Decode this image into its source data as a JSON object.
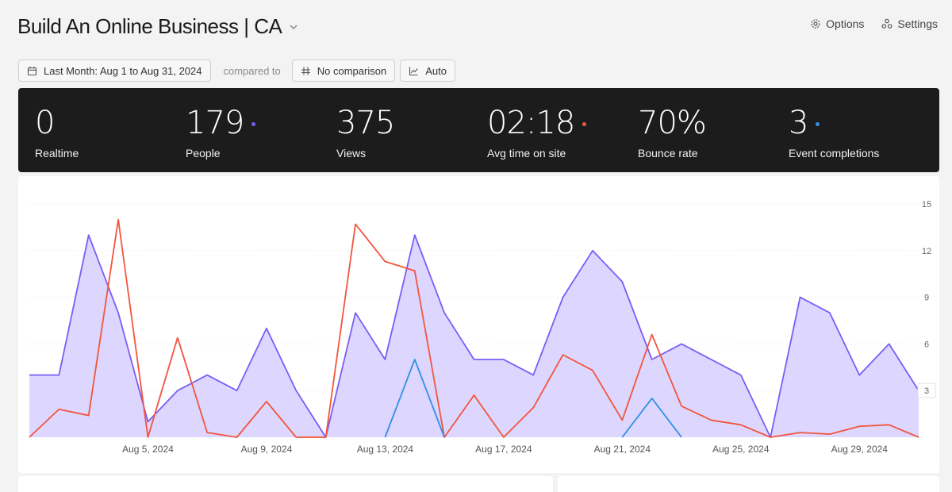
{
  "header": {
    "title": "Build An Online Business | CA",
    "actions": [
      {
        "label": "Options",
        "icon": "gear-icon"
      },
      {
        "label": "Settings",
        "icon": "nodes-icon"
      }
    ]
  },
  "filters": {
    "date_range": "Last Month: Aug 1 to Aug 31, 2024",
    "compared_to_label": "compared to",
    "comparison": "No comparison",
    "interval": "Auto"
  },
  "stats": [
    {
      "label": "Realtime",
      "value": "0",
      "dot_color": ""
    },
    {
      "label": "People",
      "value": "179",
      "dot_color": "#7b5cf5"
    },
    {
      "label": "Views",
      "value": "375",
      "dot_color": ""
    },
    {
      "label": "Avg time on site",
      "value": "02:18",
      "dot_color": "#f2553d"
    },
    {
      "label": "Bounce rate",
      "value": "70%",
      "dot_color": ""
    },
    {
      "label": "Event completions",
      "value": "3",
      "dot_color": "#2f8fe8"
    }
  ],
  "chart_data": {
    "type": "line",
    "x": [
      "Aug 1",
      "Aug 2",
      "Aug 3",
      "Aug 4",
      "Aug 5",
      "Aug 6",
      "Aug 7",
      "Aug 8",
      "Aug 9",
      "Aug 10",
      "Aug 11",
      "Aug 12",
      "Aug 13",
      "Aug 14",
      "Aug 15",
      "Aug 16",
      "Aug 17",
      "Aug 18",
      "Aug 19",
      "Aug 20",
      "Aug 21",
      "Aug 22",
      "Aug 23",
      "Aug 24",
      "Aug 25",
      "Aug 26",
      "Aug 27",
      "Aug 28",
      "Aug 29",
      "Aug 30",
      "Aug 31"
    ],
    "x_tick_labels": [
      "Aug 5, 2024",
      "Aug 9, 2024",
      "Aug 13, 2024",
      "Aug 17, 2024",
      "Aug 21, 2024",
      "Aug 25, 2024",
      "Aug 29, 2024"
    ],
    "x_tick_index": [
      4,
      8,
      12,
      16,
      20,
      24,
      28
    ],
    "y_ticks": [
      3,
      6,
      9,
      12,
      15
    ],
    "ylim": [
      0,
      15
    ],
    "series": [
      {
        "color": "#7b5cf5",
        "fill": "#ddd6fe",
        "area": true,
        "values": [
          4,
          4,
          13,
          8,
          1,
          3,
          4,
          3,
          7,
          3,
          0,
          8,
          5,
          13,
          8,
          5,
          5,
          4,
          9,
          12,
          10,
          5,
          6,
          5,
          4,
          0,
          9,
          8,
          4,
          6,
          3
        ]
      },
      {
        "color": "#f2553d",
        "area": false,
        "values": [
          0,
          1.8,
          1.4,
          14,
          0,
          6.4,
          0.3,
          0,
          2.3,
          0,
          0,
          13.7,
          11.3,
          10.7,
          0,
          2.7,
          0,
          1.9,
          5.3,
          4.3,
          1.1,
          6.6,
          2,
          1.1,
          0.8,
          0,
          0.3,
          0.2,
          0.7,
          0.8,
          0
        ]
      },
      {
        "color": "#2f8fe8",
        "area": false,
        "values": [
          null,
          null,
          null,
          null,
          null,
          null,
          null,
          null,
          null,
          null,
          null,
          null,
          0,
          5,
          0,
          null,
          null,
          null,
          null,
          null,
          0,
          2.5,
          0,
          null,
          null,
          null,
          null,
          null,
          null,
          null,
          null
        ]
      }
    ],
    "highlight_tick": "3"
  }
}
